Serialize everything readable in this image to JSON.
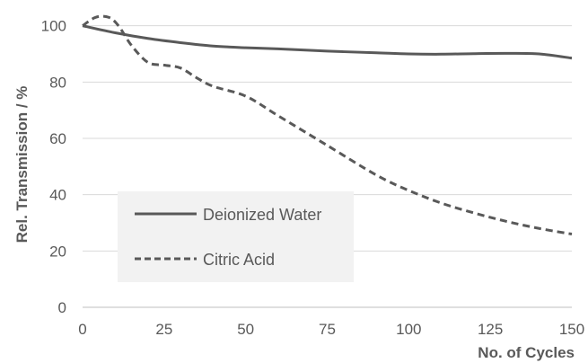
{
  "chart_data": {
    "type": "line",
    "xlabel": "No. of Cycles",
    "ylabel": "Rel. Transmission / %",
    "xlim": [
      0,
      150
    ],
    "ylim": [
      0,
      105
    ],
    "x_ticks": [
      "0",
      "25",
      "50",
      "75",
      "100",
      "125",
      "150"
    ],
    "y_ticks": [
      "0",
      "20",
      "40",
      "60",
      "80",
      "100"
    ],
    "grid": "horizontal",
    "legend_position": "lower-left",
    "series": [
      {
        "name": "Deionized Water",
        "line_style": "solid",
        "color": "#595959",
        "x": [
          0,
          10,
          20,
          30,
          40,
          50,
          60,
          75,
          90,
          100,
          110,
          120,
          130,
          140,
          150
        ],
        "y": [
          100,
          97.5,
          95.5,
          94,
          92.8,
          92.2,
          91.8,
          91,
          90.4,
          90,
          89.9,
          90.1,
          90.2,
          90,
          88.5
        ]
      },
      {
        "name": "Citric Acid",
        "line_style": "dashed",
        "color": "#595959",
        "x": [
          0,
          4,
          8,
          11,
          15,
          20,
          25,
          30,
          35,
          40,
          50,
          60,
          75,
          90,
          100,
          110,
          120,
          130,
          140,
          150
        ],
        "y": [
          100,
          103,
          103,
          100,
          93,
          87,
          86,
          85,
          81.5,
          78.5,
          75,
          68,
          57.5,
          47,
          41.5,
          37,
          33.5,
          30.5,
          28,
          26
        ]
      }
    ]
  }
}
